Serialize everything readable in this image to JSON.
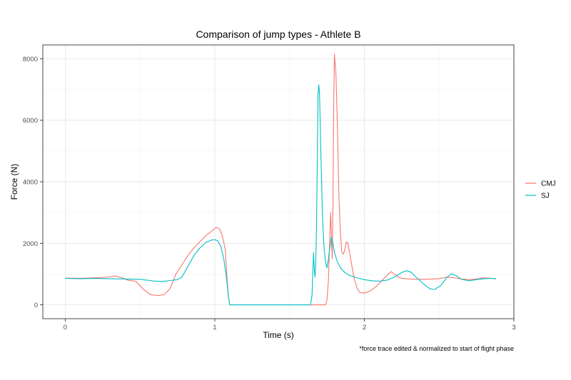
{
  "chart_data": {
    "type": "line",
    "title": "Comparison of jump types - Athlete B",
    "xlabel": "Time (s)",
    "ylabel": "Force (N)",
    "caption": "*force trace edited & normalized to start of flight phase",
    "xlim": [
      -0.15,
      3.0
    ],
    "ylim": [
      -450,
      8450
    ],
    "x_ticks": [
      0,
      1,
      2,
      3
    ],
    "x_tick_labels": [
      "0",
      "1",
      "2",
      "3"
    ],
    "y_ticks": [
      0,
      2000,
      4000,
      6000,
      8000
    ],
    "y_tick_labels": [
      "0",
      "2000",
      "4000",
      "6000",
      "8000"
    ],
    "grid": true,
    "legend_position": "right",
    "series": [
      {
        "name": "CMJ",
        "color": "#F8766D",
        "points": [
          [
            0.0,
            870
          ],
          [
            0.1,
            860
          ],
          [
            0.2,
            880
          ],
          [
            0.28,
            900
          ],
          [
            0.33,
            940
          ],
          [
            0.38,
            880
          ],
          [
            0.42,
            800
          ],
          [
            0.47,
            770
          ],
          [
            0.52,
            520
          ],
          [
            0.57,
            330
          ],
          [
            0.62,
            300
          ],
          [
            0.66,
            330
          ],
          [
            0.7,
            520
          ],
          [
            0.74,
            1000
          ],
          [
            0.78,
            1300
          ],
          [
            0.82,
            1600
          ],
          [
            0.86,
            1850
          ],
          [
            0.9,
            2050
          ],
          [
            0.94,
            2250
          ],
          [
            0.98,
            2400
          ],
          [
            1.01,
            2520
          ],
          [
            1.03,
            2480
          ],
          [
            1.05,
            2250
          ],
          [
            1.07,
            1800
          ],
          [
            1.08,
            1000
          ],
          [
            1.09,
            300
          ],
          [
            1.1,
            0
          ],
          [
            1.4,
            0
          ],
          [
            1.6,
            0
          ],
          [
            1.74,
            0
          ],
          [
            1.75,
            150
          ],
          [
            1.76,
            800
          ],
          [
            1.77,
            2400
          ],
          [
            1.775,
            3000
          ],
          [
            1.78,
            2100
          ],
          [
            1.785,
            1500
          ],
          [
            1.79,
            3200
          ],
          [
            1.795,
            6500
          ],
          [
            1.8,
            8150
          ],
          [
            1.81,
            7500
          ],
          [
            1.82,
            5800
          ],
          [
            1.83,
            3500
          ],
          [
            1.84,
            2300
          ],
          [
            1.85,
            1700
          ],
          [
            1.86,
            1650
          ],
          [
            1.87,
            1800
          ],
          [
            1.88,
            2050
          ],
          [
            1.89,
            2000
          ],
          [
            1.91,
            1450
          ],
          [
            1.93,
            900
          ],
          [
            1.95,
            550
          ],
          [
            1.97,
            400
          ],
          [
            2.0,
            380
          ],
          [
            2.04,
            450
          ],
          [
            2.08,
            600
          ],
          [
            2.12,
            800
          ],
          [
            2.16,
            1000
          ],
          [
            2.18,
            1080
          ],
          [
            2.2,
            1000
          ],
          [
            2.24,
            870
          ],
          [
            2.3,
            840
          ],
          [
            2.4,
            830
          ],
          [
            2.5,
            850
          ],
          [
            2.55,
            900
          ],
          [
            2.6,
            880
          ],
          [
            2.65,
            840
          ],
          [
            2.7,
            820
          ],
          [
            2.75,
            840
          ],
          [
            2.8,
            880
          ],
          [
            2.85,
            860
          ],
          [
            2.88,
            840
          ]
        ]
      },
      {
        "name": "SJ",
        "color": "#00BFC4",
        "points": [
          [
            0.0,
            860
          ],
          [
            0.1,
            850
          ],
          [
            0.2,
            860
          ],
          [
            0.3,
            850
          ],
          [
            0.4,
            840
          ],
          [
            0.5,
            830
          ],
          [
            0.55,
            800
          ],
          [
            0.6,
            770
          ],
          [
            0.65,
            760
          ],
          [
            0.7,
            790
          ],
          [
            0.75,
            820
          ],
          [
            0.78,
            900
          ],
          [
            0.82,
            1250
          ],
          [
            0.86,
            1600
          ],
          [
            0.9,
            1850
          ],
          [
            0.94,
            2030
          ],
          [
            0.98,
            2110
          ],
          [
            1.0,
            2120
          ],
          [
            1.02,
            2080
          ],
          [
            1.04,
            1900
          ],
          [
            1.06,
            1500
          ],
          [
            1.08,
            800
          ],
          [
            1.09,
            300
          ],
          [
            1.1,
            0
          ],
          [
            1.4,
            0
          ],
          [
            1.6,
            0
          ],
          [
            1.64,
            0
          ],
          [
            1.65,
            300
          ],
          [
            1.655,
            1000
          ],
          [
            1.66,
            1700
          ],
          [
            1.665,
            1200
          ],
          [
            1.67,
            900
          ],
          [
            1.675,
            1300
          ],
          [
            1.68,
            2500
          ],
          [
            1.685,
            4500
          ],
          [
            1.69,
            6800
          ],
          [
            1.695,
            7150
          ],
          [
            1.7,
            6900
          ],
          [
            1.71,
            4800
          ],
          [
            1.72,
            2900
          ],
          [
            1.73,
            1900
          ],
          [
            1.74,
            1400
          ],
          [
            1.75,
            1200
          ],
          [
            1.76,
            1500
          ],
          [
            1.77,
            1900
          ],
          [
            1.78,
            2200
          ],
          [
            1.79,
            2000
          ],
          [
            1.8,
            1700
          ],
          [
            1.82,
            1400
          ],
          [
            1.84,
            1200
          ],
          [
            1.87,
            1050
          ],
          [
            1.9,
            960
          ],
          [
            1.95,
            880
          ],
          [
            2.0,
            820
          ],
          [
            2.05,
            780
          ],
          [
            2.1,
            770
          ],
          [
            2.15,
            800
          ],
          [
            2.2,
            900
          ],
          [
            2.25,
            1050
          ],
          [
            2.28,
            1110
          ],
          [
            2.31,
            1070
          ],
          [
            2.35,
            880
          ],
          [
            2.4,
            660
          ],
          [
            2.44,
            520
          ],
          [
            2.47,
            500
          ],
          [
            2.51,
            620
          ],
          [
            2.55,
            880
          ],
          [
            2.58,
            1010
          ],
          [
            2.61,
            960
          ],
          [
            2.65,
            830
          ],
          [
            2.7,
            780
          ],
          [
            2.75,
            820
          ],
          [
            2.8,
            850
          ],
          [
            2.85,
            860
          ],
          [
            2.88,
            850
          ]
        ]
      }
    ]
  }
}
